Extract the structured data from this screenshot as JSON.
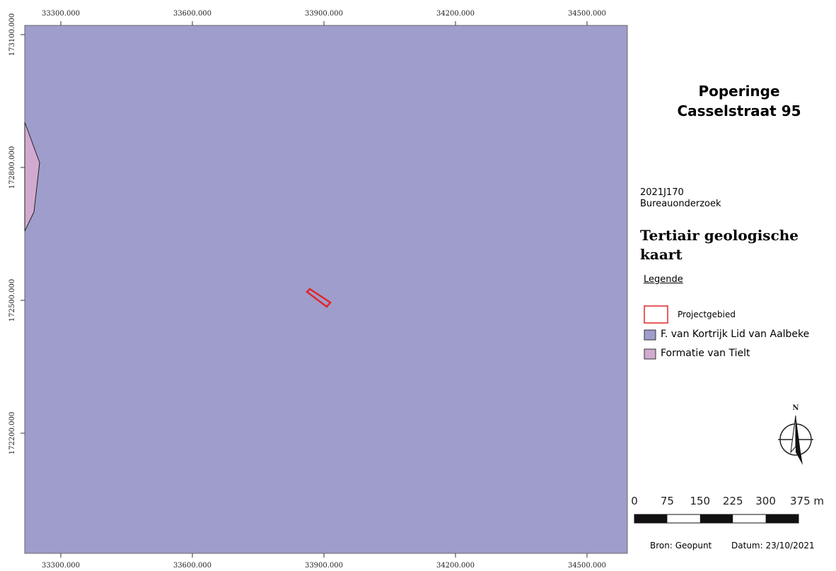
{
  "map": {
    "x_labels": [
      "33300.000",
      "33600.000",
      "33900.000",
      "34200.000",
      "34500.000"
    ],
    "y_labels": [
      "173100.000",
      "172800.000",
      "172500.000",
      "172200.000"
    ],
    "north": "N"
  },
  "title": {
    "line1": "Poperinge",
    "line2": "Casselstraat 95"
  },
  "project": {
    "code": "2021J170",
    "kind": "Bureauonderzoek"
  },
  "map_title": "Tertiair geologische kaart",
  "legend": {
    "heading": "Legende",
    "items": [
      {
        "label": "Projectgebied"
      },
      {
        "label": "F. van Kortrijk Lid van Aalbeke"
      },
      {
        "label": "Formatie van Tielt"
      }
    ]
  },
  "scale": {
    "labels": [
      "0",
      "75",
      "150",
      "225",
      "300",
      "375 m"
    ]
  },
  "footer": {
    "source": "Bron: Geopunt",
    "date": "Datum: 23/10/2021"
  }
}
